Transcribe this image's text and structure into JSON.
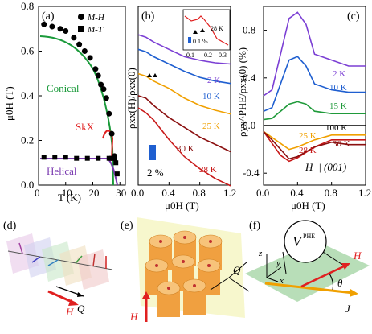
{
  "panel_labels": {
    "a": "(a)",
    "b": "(b)",
    "c": "(c)",
    "d": "(d)",
    "e": "(e)",
    "f": "(f)"
  },
  "colors": {
    "conical": "#1a9a3a",
    "skx": "#e02020",
    "helical": "#7a3ab0",
    "k2": "#7b3fd4",
    "k10": "#1f5fd0",
    "k15": "#1f9a3a",
    "k25": "#f0a000",
    "k28": "#c81818",
    "k30": "#8b1010",
    "k100": "#000000"
  },
  "chart_data": [
    {
      "type": "scatter",
      "panel": "a",
      "xlabel": "T (K)",
      "ylabel": "μ0H (T)",
      "xlim": [
        0,
        32
      ],
      "ylim": [
        0,
        0.8
      ],
      "xticks": [
        0,
        10,
        20,
        30
      ],
      "yticks": [
        0.0,
        0.2,
        0.4,
        0.6,
        0.8
      ],
      "xtick_labels": [
        "0",
        "10",
        "20",
        "30"
      ],
      "ytick_labels": [
        "0.0",
        "0.2",
        "0.4",
        "0.6",
        "0.8"
      ],
      "legend": [
        "M-H",
        "M-T"
      ],
      "annotations": [
        "Conical",
        "SkX",
        "Helical"
      ],
      "series": [
        {
          "name": "M-H",
          "marker": "circle",
          "x": [
            2,
            5,
            8,
            10,
            13,
            15,
            17,
            19,
            21,
            22,
            23,
            24,
            25,
            26,
            27,
            28
          ],
          "y": [
            0.72,
            0.71,
            0.7,
            0.69,
            0.66,
            0.63,
            0.6,
            0.57,
            0.52,
            0.49,
            0.45,
            0.43,
            0.39,
            0.32,
            0.23,
            0.13
          ]
        },
        {
          "name": "M-T",
          "marker": "square",
          "x": [
            2,
            6,
            10,
            14,
            18,
            22,
            26,
            27,
            28,
            28.5,
            29
          ],
          "y": [
            0.125,
            0.125,
            0.125,
            0.12,
            0.12,
            0.12,
            0.12,
            0.12,
            0.12,
            0.1,
            0.05
          ]
        }
      ]
    },
    {
      "type": "line",
      "panel": "b",
      "xlabel": "μ0H (T)",
      "ylabel": "ρxx(H)/ρxx(0)",
      "xlim": [
        0,
        1.2
      ],
      "xticks": [
        0,
        0.4,
        0.8,
        1.2
      ],
      "xtick_labels": [
        "0.0",
        "0.4",
        "0.8",
        "1.2"
      ],
      "scale_bar": "2 %",
      "inset": {
        "xtick_labels": [
          "0.1",
          "0.2",
          "0.3"
        ],
        "label_28": "28 K",
        "scale_bar": "0.1 %"
      },
      "series": [
        {
          "name": "2 K",
          "x": [
            0,
            0.1,
            0.2,
            0.4,
            0.6,
            0.8,
            1.0,
            1.2
          ],
          "y": [
            0,
            -0.2,
            -0.6,
            -1.2,
            -1.8,
            -2.1,
            -2.3,
            -2.4
          ]
        },
        {
          "name": "10 K",
          "x": [
            0,
            0.1,
            0.2,
            0.4,
            0.6,
            0.8,
            1.0,
            1.2
          ],
          "y": [
            -1.2,
            -1.4,
            -1.8,
            -2.4,
            -3.0,
            -3.5,
            -3.8,
            -4.0
          ]
        },
        {
          "name": "25 K",
          "x": [
            0,
            0.1,
            0.2,
            0.4,
            0.6,
            0.8,
            1.0,
            1.2
          ],
          "y": [
            -3.2,
            -3.4,
            -3.8,
            -4.4,
            -5.2,
            -5.8,
            -6.2,
            -6.5
          ]
        },
        {
          "name": "30 K",
          "x": [
            0,
            0.1,
            0.2,
            0.4,
            0.6,
            0.8,
            1.0,
            1.2
          ],
          "y": [
            -5.0,
            -5.2,
            -5.8,
            -6.8,
            -7.6,
            -8.4,
            -9.0,
            -9.6
          ]
        },
        {
          "name": "28 K",
          "x": [
            0,
            0.1,
            0.2,
            0.4,
            0.6,
            0.8,
            1.0,
            1.2
          ],
          "y": [
            -6.0,
            -6.4,
            -7.0,
            -8.6,
            -10.0,
            -11.0,
            -11.8,
            -12.4
          ]
        }
      ]
    },
    {
      "type": "line",
      "panel": "c",
      "xlabel": "μ0H (T)",
      "ylabel": "ρyx^PHE/ρxx(0) (%)",
      "xlim": [
        0,
        1.2
      ],
      "ylim": [
        -0.5,
        1.0
      ],
      "xticks": [
        0,
        0.4,
        0.8,
        1.2
      ],
      "yticks": [
        -0.4,
        0.0,
        0.4,
        0.8
      ],
      "xtick_labels": [
        "0.0",
        "0.4",
        "0.8",
        "1.2"
      ],
      "ytick_labels": [
        "-0.4",
        "0.0",
        "0.4",
        "0.8"
      ],
      "annotation": "H || (001)",
      "series": [
        {
          "name": "2 K",
          "x": [
            0,
            0.1,
            0.2,
            0.3,
            0.4,
            0.5,
            0.6,
            0.8,
            1.0,
            1.2
          ],
          "y": [
            0.25,
            0.3,
            0.6,
            0.9,
            0.95,
            0.85,
            0.6,
            0.55,
            0.5,
            0.5
          ]
        },
        {
          "name": "10 K",
          "x": [
            0,
            0.1,
            0.2,
            0.3,
            0.4,
            0.5,
            0.6,
            0.8,
            1.0,
            1.2
          ],
          "y": [
            0.12,
            0.15,
            0.35,
            0.55,
            0.58,
            0.5,
            0.35,
            0.3,
            0.28,
            0.28
          ]
        },
        {
          "name": "15 K",
          "x": [
            0,
            0.1,
            0.2,
            0.3,
            0.4,
            0.5,
            0.6,
            0.8,
            1.0,
            1.2
          ],
          "y": [
            0.05,
            0.06,
            0.12,
            0.18,
            0.2,
            0.18,
            0.12,
            0.1,
            0.1,
            0.1
          ]
        },
        {
          "name": "100 K",
          "x": [
            0,
            0.4,
            0.8,
            1.2
          ],
          "y": [
            0,
            0,
            0,
            0
          ]
        },
        {
          "name": "25 K",
          "x": [
            0,
            0.1,
            0.2,
            0.3,
            0.4,
            0.6,
            0.8,
            1.0,
            1.2
          ],
          "y": [
            -0.05,
            -0.1,
            -0.15,
            -0.2,
            -0.18,
            -0.12,
            -0.08,
            -0.08,
            -0.08
          ]
        },
        {
          "name": "28 K",
          "x": [
            0,
            0.1,
            0.2,
            0.3,
            0.4,
            0.6,
            0.8,
            1.0,
            1.2
          ],
          "y": [
            -0.05,
            -0.15,
            -0.25,
            -0.3,
            -0.27,
            -0.18,
            -0.12,
            -0.12,
            -0.12
          ]
        },
        {
          "name": "30 K",
          "x": [
            0,
            0.1,
            0.2,
            0.3,
            0.4,
            0.6,
            0.8,
            1.0,
            1.2
          ],
          "y": [
            -0.05,
            -0.12,
            -0.2,
            -0.28,
            -0.26,
            -0.18,
            -0.14,
            -0.16,
            -0.16
          ]
        }
      ]
    }
  ],
  "panel_d": {
    "field_label": "H",
    "wavevector_label": "Q"
  },
  "panel_e": {
    "field_label": "H",
    "wavevector_label": "Q"
  },
  "panel_f": {
    "voltage_label": "V",
    "voltage_sup": "PHE",
    "z": "z",
    "y": "y",
    "x": "x",
    "field_label": "H",
    "angle_label": "θ",
    "current_label": "J"
  }
}
